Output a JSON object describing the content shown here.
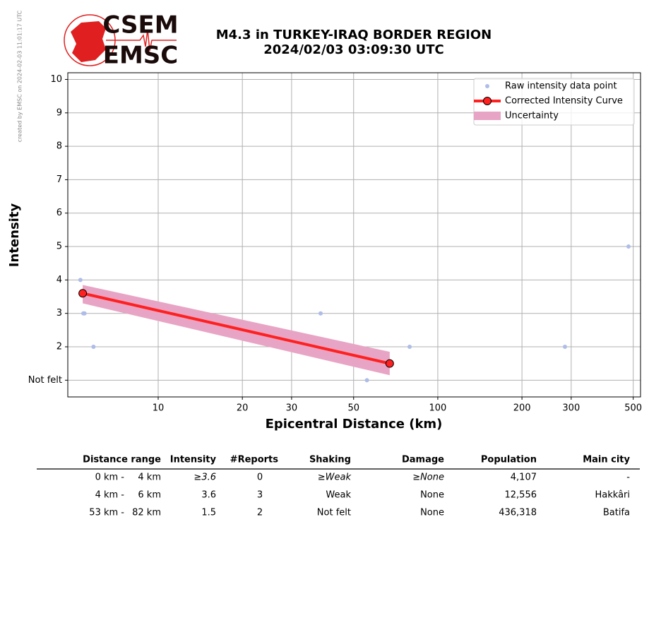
{
  "side_note": "created by EMSC on 2024-02-03 11:01:17 UTC",
  "logo": {
    "top": "CSEM",
    "bottom": "EMSC"
  },
  "chart_data": {
    "type": "scatter-line",
    "title": "M4.3 in TURKEY-IRAQ BORDER REGION",
    "subtitle": "2024/02/03 03:09:30 UTC",
    "x_label": "Epicentral Distance (km)",
    "y_label": "Intensity",
    "x_log": true,
    "grid": true,
    "legend_loc": "upper right",
    "xlim": [
      4.75,
      531
    ],
    "ylim": [
      0.5,
      10.2
    ],
    "xticks": [
      10,
      20,
      30,
      50,
      100,
      200,
      300,
      500
    ],
    "yticks": [
      {
        "value": 1,
        "label": "Not felt"
      },
      2,
      3,
      4,
      5,
      6,
      7,
      8,
      9,
      10
    ],
    "series": [
      {
        "name": "Raw intensity data point",
        "color": "#aebde8",
        "kind": "points",
        "x": [
          5.27,
          5.4,
          5.45,
          5.87,
          38.1,
          55.8,
          79.3,
          285,
          481
        ],
        "values": [
          4,
          3,
          3,
          2,
          3,
          1,
          2,
          2,
          5
        ]
      },
      {
        "name": "Corrected Intensity Curve",
        "color": "#ff2020",
        "kind": "line",
        "x": [
          5.37,
          67.3
        ],
        "values": [
          3.6,
          1.5
        ]
      },
      {
        "name": "Uncertainty",
        "color": "#e8a4c4",
        "kind": "band",
        "x": [
          5.37,
          67.3
        ],
        "upper": [
          3.85,
          1.85
        ],
        "lower": [
          3.3,
          1.15
        ]
      }
    ]
  },
  "table": {
    "header": [
      "Distance range",
      "Intensity",
      "#Reports",
      "Shaking",
      "Damage",
      "Population",
      "Main city"
    ],
    "rows": [
      [
        "0 km -",
        "4 km",
        "≥3.6",
        "0",
        "≥Weak",
        "≥None",
        "4,107",
        "-"
      ],
      [
        "4 km -",
        "6 km",
        "3.6",
        "3",
        "Weak",
        "None",
        "12,556",
        "Hakkâri"
      ],
      [
        "53 km -",
        "82 km",
        "1.5",
        "2",
        "Not felt",
        "None",
        "436,318",
        "Batifa"
      ]
    ]
  }
}
